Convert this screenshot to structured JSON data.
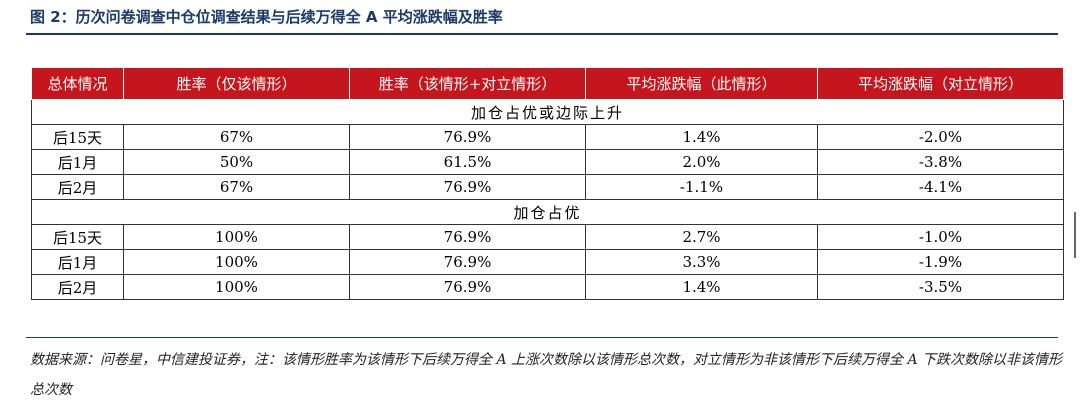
{
  "title": "图 2：历次问卷调查中仓位调查结果与后续万得全 A 平均涨跌幅及胜率",
  "table": {
    "headers": [
      "总体情况",
      "胜率（仅该情形）",
      "胜率（该情形+对立情形）",
      "平均涨跌幅（此情形）",
      "平均涨跌幅（对立情形）"
    ],
    "sections": [
      {
        "label": "加仓占优或边际上升",
        "rows": [
          [
            "后15天",
            "67%",
            "76.9%",
            "1.4%",
            "-2.0%"
          ],
          [
            "后1月",
            "50%",
            "61.5%",
            "2.0%",
            "-3.8%"
          ],
          [
            "后2月",
            "67%",
            "76.9%",
            "-1.1%",
            "-4.1%"
          ]
        ]
      },
      {
        "label": "加仓占优",
        "rows": [
          [
            "后15天",
            "100%",
            "76.9%",
            "2.7%",
            "-1.0%"
          ],
          [
            "后1月",
            "100%",
            "76.9%",
            "3.3%",
            "-1.9%"
          ],
          [
            "后2月",
            "100%",
            "76.9%",
            "1.4%",
            "-3.5%"
          ]
        ]
      }
    ]
  },
  "note": "数据来源：问卷星，中信建投证券，注：该情形胜率为该情形下后续万得全 A 上涨次数除以该情形总次数，对立情形为非该情形下后续万得全 A 下跌次数除以非该情形总次数",
  "colors": {
    "header_bg": "#c4161c",
    "title": "#1a3a6b"
  }
}
